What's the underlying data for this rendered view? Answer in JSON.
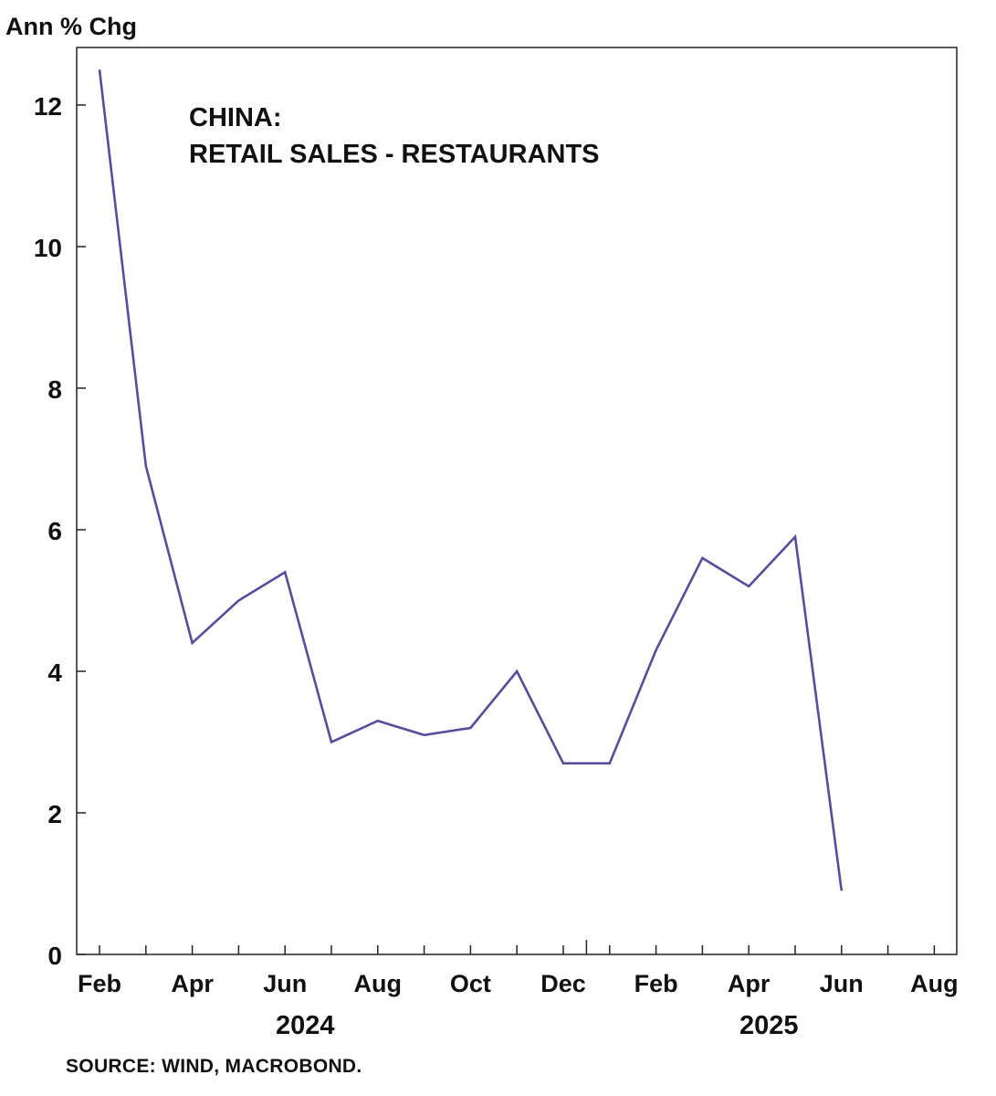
{
  "chart_data": {
    "type": "line",
    "ylabel": "Ann % Chg",
    "title_lines": [
      "CHINA:",
      "RETAIL SALES - RESTAURANTS"
    ],
    "ylim": [
      0,
      12.5
    ],
    "yticks": [
      0,
      2,
      4,
      6,
      8,
      10,
      12
    ],
    "xlim": [
      "2024-02",
      "2025-08"
    ],
    "x_tick_labels": [
      "Feb",
      "Apr",
      "Jun",
      "Aug",
      "Oct",
      "Dec",
      "Feb",
      "Apr",
      "Jun",
      "Aug"
    ],
    "year_labels": [
      {
        "label": "2024",
        "month": "2024-06"
      },
      {
        "label": "2025",
        "month": "2025-04"
      }
    ],
    "series": [
      {
        "x": [
          "2024-02",
          "2024-03",
          "2024-04",
          "2024-05",
          "2024-06",
          "2024-07",
          "2024-08",
          "2024-09",
          "2024-10",
          "2024-11",
          "2024-12",
          "2025-01",
          "2025-02",
          "2025-03",
          "2025-04",
          "2025-05",
          "2025-06"
        ],
        "values": [
          12.5,
          6.9,
          4.4,
          5.0,
          5.4,
          3.0,
          3.3,
          3.1,
          3.2,
          4.0,
          2.7,
          2.7,
          4.3,
          5.6,
          5.2,
          5.9,
          0.9
        ],
        "color": "#5b4a9e"
      }
    ],
    "grid": false
  },
  "source": "SOURCE: WIND, MACROBOND."
}
